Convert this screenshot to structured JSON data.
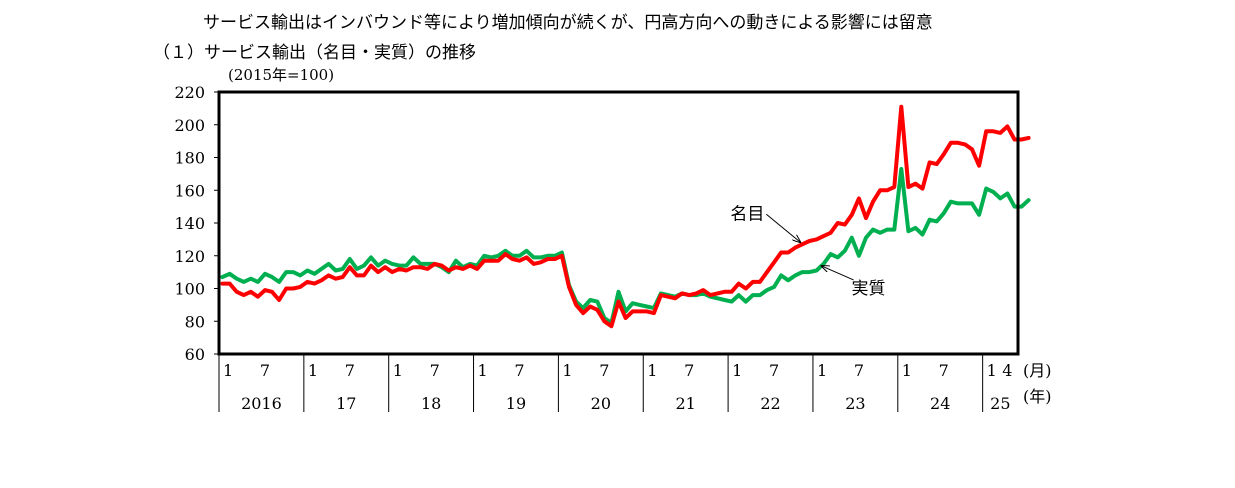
{
  "subtitle": "サービス輸出はインバウンド等により増加傾向が続くが、円高方向への動きによる影響には留意",
  "section_title": "（１）サービス輸出（名目・実質）の推移",
  "chart_data": {
    "type": "line",
    "unit_label": "(2015年=100)",
    "ylim": [
      60,
      220
    ],
    "yticks": [
      "60",
      "80",
      "100",
      "120",
      "140",
      "160",
      "180",
      "200",
      "220"
    ],
    "x_start": "2016-01",
    "x_end": "2025-05",
    "month_axis_label": "(月)",
    "year_axis_label": "(年)",
    "year_labels": [
      {
        "label": "2016",
        "year": 2016
      },
      {
        "label": "17",
        "year": 2017
      },
      {
        "label": "18",
        "year": 2018
      },
      {
        "label": "19",
        "year": 2019
      },
      {
        "label": "20",
        "year": 2020
      },
      {
        "label": "21",
        "year": 2021
      },
      {
        "label": "22",
        "year": 2022
      },
      {
        "label": "23",
        "year": 2023
      },
      {
        "label": "24",
        "year": 2024
      },
      {
        "label": "25",
        "year": 2025
      }
    ],
    "month_ticks": [
      {
        "label": "1",
        "date": "2016-01"
      },
      {
        "label": "7",
        "date": "2016-07"
      },
      {
        "label": "1",
        "date": "2017-01"
      },
      {
        "label": "7",
        "date": "2017-07"
      },
      {
        "label": "1",
        "date": "2018-01"
      },
      {
        "label": "7",
        "date": "2018-07"
      },
      {
        "label": "1",
        "date": "2019-01"
      },
      {
        "label": "7",
        "date": "2019-07"
      },
      {
        "label": "1",
        "date": "2020-01"
      },
      {
        "label": "7",
        "date": "2020-07"
      },
      {
        "label": "1",
        "date": "2021-01"
      },
      {
        "label": "7",
        "date": "2021-07"
      },
      {
        "label": "1",
        "date": "2022-01"
      },
      {
        "label": "7",
        "date": "2022-07"
      },
      {
        "label": "1",
        "date": "2023-01"
      },
      {
        "label": "7",
        "date": "2023-07"
      },
      {
        "label": "1",
        "date": "2024-01"
      },
      {
        "label": "7",
        "date": "2024-07"
      },
      {
        "label": "1",
        "date": "2025-01"
      },
      {
        "label": "4",
        "date": "2025-04"
      }
    ],
    "series": [
      {
        "name": "名目",
        "color": "#ff0000",
        "values": [
          103,
          103,
          98,
          96,
          98,
          95,
          99,
          98,
          93,
          100,
          100,
          101,
          104,
          103,
          105,
          108,
          106,
          107,
          113,
          108,
          108,
          114,
          110,
          113,
          110,
          112,
          111,
          113,
          113,
          112,
          115,
          114,
          111,
          113,
          112,
          114,
          112,
          117,
          117,
          117,
          121,
          118,
          117,
          119,
          115,
          116,
          118,
          118,
          120,
          101,
          90,
          85,
          89,
          87,
          80,
          77,
          92,
          82,
          86,
          86,
          86,
          85,
          96,
          95,
          94,
          97,
          96,
          97,
          99,
          96,
          97,
          98,
          98,
          103,
          100,
          104,
          104,
          110,
          116,
          122,
          122,
          125,
          127,
          129,
          130,
          132,
          134,
          140,
          139,
          145,
          155,
          143,
          153,
          160,
          160,
          162,
          211,
          162,
          164,
          161,
          177,
          176,
          182,
          189,
          189,
          188,
          185,
          175,
          196,
          196,
          195,
          199,
          191,
          191,
          192
        ]
      },
      {
        "name": "実質",
        "color": "#00b050",
        "values": [
          107,
          109,
          106,
          104,
          106,
          104,
          109,
          107,
          104,
          110,
          110,
          108,
          111,
          109,
          112,
          115,
          111,
          112,
          118,
          112,
          114,
          119,
          114,
          117,
          115,
          114,
          114,
          119,
          115,
          115,
          115,
          113,
          110,
          117,
          113,
          115,
          114,
          120,
          119,
          120,
          123,
          120,
          120,
          123,
          119,
          119,
          120,
          120,
          122,
          102,
          92,
          88,
          93,
          92,
          82,
          79,
          98,
          86,
          91,
          90,
          89,
          88,
          97,
          96,
          95,
          97,
          96,
          96,
          97,
          95,
          94,
          93,
          92,
          96,
          92,
          96,
          96,
          99,
          101,
          108,
          105,
          108,
          110,
          110,
          111,
          115,
          121,
          119,
          123,
          131,
          120,
          131,
          136,
          134,
          136,
          136,
          173,
          135,
          137,
          133,
          142,
          141,
          146,
          153,
          152,
          152,
          152,
          145,
          161,
          159,
          155,
          158,
          150,
          150,
          154
        ]
      }
    ],
    "annotations": [
      {
        "text": "名目",
        "series": "名目",
        "date": "2022-11"
      },
      {
        "text": "実質",
        "series": "実質",
        "date": "2023-02"
      }
    ]
  }
}
